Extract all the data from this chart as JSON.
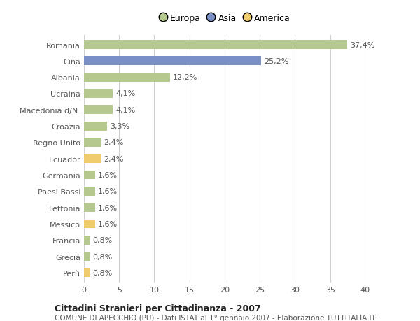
{
  "categories": [
    "Romania",
    "Cina",
    "Albania",
    "Ucraina",
    "Macedonia d/N.",
    "Croazia",
    "Regno Unito",
    "Ecuador",
    "Germania",
    "Paesi Bassi",
    "Lettonia",
    "Messico",
    "Francia",
    "Grecia",
    "Perù"
  ],
  "values": [
    37.4,
    25.2,
    12.2,
    4.1,
    4.1,
    3.3,
    2.4,
    2.4,
    1.6,
    1.6,
    1.6,
    1.6,
    0.8,
    0.8,
    0.8
  ],
  "labels": [
    "37,4%",
    "25,2%",
    "12,2%",
    "4,1%",
    "4,1%",
    "3,3%",
    "2,4%",
    "2,4%",
    "1,6%",
    "1,6%",
    "1,6%",
    "1,6%",
    "0,8%",
    "0,8%",
    "0,8%"
  ],
  "continents": [
    "Europa",
    "Asia",
    "Europa",
    "Europa",
    "Europa",
    "Europa",
    "Europa",
    "America",
    "Europa",
    "Europa",
    "Europa",
    "America",
    "Europa",
    "Europa",
    "America"
  ],
  "colors": {
    "Europa": "#b5c98e",
    "Asia": "#7b8fc7",
    "America": "#f0cc6e"
  },
  "legend_labels": [
    "Europa",
    "Asia",
    "America"
  ],
  "legend_colors": [
    "#b5c98e",
    "#7b8fc7",
    "#f0cc6e"
  ],
  "xlim": [
    0,
    40
  ],
  "xticks": [
    0,
    5,
    10,
    15,
    20,
    25,
    30,
    35,
    40
  ],
  "title": "Cittadini Stranieri per Cittadinanza - 2007",
  "subtitle": "COMUNE DI APECCHIO (PU) - Dati ISTAT al 1° gennaio 2007 - Elaborazione TUTTITALIA.IT",
  "bg_color": "#ffffff",
  "grid_color": "#d0d0d0",
  "bar_height": 0.55,
  "label_fontsize": 8.0,
  "tick_fontsize": 8.0,
  "title_fontsize": 9.0,
  "subtitle_fontsize": 7.5
}
